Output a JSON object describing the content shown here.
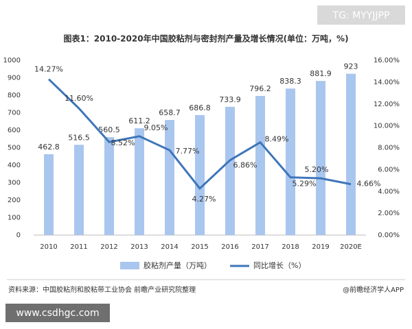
{
  "chart_data": {
    "type": "bar-line",
    "title": "图表1：2010-2020年中国胶粘剂与密封剂产量及增长情况(单位：万吨，%)",
    "categories": [
      "2010",
      "2011",
      "2012",
      "2013",
      "2014",
      "2015",
      "2016",
      "2017",
      "2018",
      "2019",
      "2020E"
    ],
    "series": [
      {
        "name": "胶粘剂产量（万吨）",
        "type": "bar",
        "color": "#a9c6ee",
        "values": [
          462.8,
          516.5,
          560.5,
          611.2,
          658.7,
          686.8,
          733.9,
          796.2,
          838.3,
          881.9,
          923
        ]
      },
      {
        "name": "同比增长（%）",
        "type": "line",
        "axis": "y2",
        "color": "#3e75b8",
        "values": [
          14.27,
          11.6,
          8.52,
          9.05,
          7.77,
          4.27,
          6.86,
          8.49,
          5.29,
          5.2,
          4.66
        ],
        "value_labels": [
          "14.27%",
          "11.60%",
          "8.52%",
          "9.05%",
          "7.77%",
          "4.27%",
          "6.86%",
          "8.49%",
          "5.29%",
          "5.20%",
          "4.66%"
        ]
      }
    ],
    "ylim": [
      0,
      1000
    ],
    "yticks": [
      0,
      100,
      200,
      300,
      400,
      500,
      600,
      700,
      800,
      900,
      1000
    ],
    "y2lim": [
      0,
      16
    ],
    "y2ticks": [
      {
        "value": 0,
        "label": "0.00%"
      },
      {
        "value": 2,
        "label": "2.00%"
      },
      {
        "value": 4,
        "label": "4.00%"
      },
      {
        "value": 6,
        "label": "6.00%"
      },
      {
        "value": 8,
        "label": "8.00%"
      },
      {
        "value": 10,
        "label": "10.00%"
      },
      {
        "value": 12,
        "label": "12.00%"
      },
      {
        "value": 14,
        "label": "14.00%"
      },
      {
        "value": 16,
        "label": "16.00%"
      }
    ],
    "grid": false,
    "legend": "bottom",
    "source": "资料来源：中国胶粘剂和胶粘带工业协会 前瞻产业研究院整理",
    "credit": "@前瞻经济学人APP"
  },
  "overlay": {
    "top_right": "TG: MYYJJPP",
    "bottom_left": "www.csdhgc.com"
  }
}
